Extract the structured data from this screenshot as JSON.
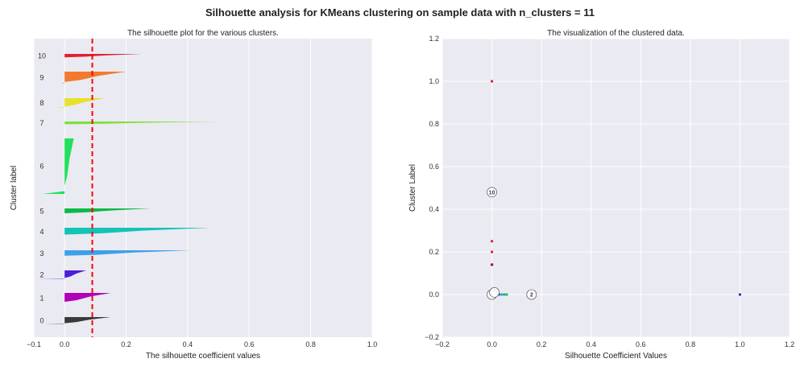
{
  "suptitle": "Silhouette analysis for KMeans clustering on sample data with n_clusters = 11",
  "colors": {
    "bg": "#EAEAF2",
    "grid": "#ffffff",
    "avg_line": "#ff0000"
  },
  "chart_data": [
    {
      "type": "area",
      "title": "The silhouette plot for the various clusters.",
      "xlabel": "The silhouette coefficient values",
      "ylabel": "Cluster label",
      "xlim": [
        -0.1,
        1.0
      ],
      "xticks": [
        -0.1,
        0.0,
        0.2,
        0.4,
        0.6,
        0.8,
        1.0
      ],
      "xtick_labels": [
        "−0.1",
        "0.0",
        "0.2",
        "0.4",
        "0.6",
        "0.8",
        "1.0"
      ],
      "grid": true,
      "average_silhouette": 0.09,
      "clusters": [
        {
          "label": "0",
          "max": 0.15,
          "min": -0.07,
          "color": "#3a3a3a"
        },
        {
          "label": "1",
          "max": 0.15,
          "min": 0.0,
          "color": "#b000b8"
        },
        {
          "label": "2",
          "max": 0.07,
          "min": -0.09,
          "color": "#4a1fd6"
        },
        {
          "label": "3",
          "max": 0.41,
          "min": 0.0,
          "color": "#3ea0e8"
        },
        {
          "label": "4",
          "max": 0.47,
          "min": 0.0,
          "color": "#12c4b6"
        },
        {
          "label": "5",
          "max": 0.28,
          "min": 0.0,
          "color": "#0db847"
        },
        {
          "label": "6",
          "max": 0.03,
          "min": -0.07,
          "color": "#22e05a"
        },
        {
          "label": "7",
          "max": 0.5,
          "min": -0.02,
          "color": "#7fe03a"
        },
        {
          "label": "8",
          "max": 0.13,
          "min": -0.04,
          "color": "#e8e02a"
        },
        {
          "label": "9",
          "max": 0.2,
          "min": -0.01,
          "color": "#f07a2e"
        },
        {
          "label": "10",
          "max": 0.25,
          "min": 0.0,
          "color": "#e02030"
        }
      ]
    },
    {
      "type": "scatter",
      "title": "The visualization of the clustered data.",
      "xlabel": "Silhouette Coefficient Values",
      "ylabel": "Cluster Label",
      "xlim": [
        -0.2,
        1.2
      ],
      "ylim": [
        -0.2,
        1.2
      ],
      "xticks": [
        -0.2,
        0.0,
        0.2,
        0.4,
        0.6,
        0.8,
        1.0,
        1.2
      ],
      "xtick_labels": [
        "−0.2",
        "0.0",
        "0.2",
        "0.4",
        "0.6",
        "0.8",
        "1.0",
        "1.2"
      ],
      "yticks": [
        -0.2,
        0.0,
        0.2,
        0.4,
        0.6,
        0.8,
        1.0,
        1.2
      ],
      "ytick_labels": [
        "−0.2",
        "0.0",
        "0.2",
        "0.4",
        "0.6",
        "0.8",
        "1.0",
        "1.2"
      ],
      "grid": true,
      "points": [
        {
          "x": 0.0,
          "y": 1.0,
          "color": "#e0203a"
        },
        {
          "x": 0.0,
          "y": 0.25,
          "color": "#e0203a"
        },
        {
          "x": 0.0,
          "y": 0.2,
          "color": "#e0203a"
        },
        {
          "x": 0.0,
          "y": 0.14,
          "color": "#b00030"
        },
        {
          "x": 0.0,
          "y": 0.14,
          "color": "#b00030"
        },
        {
          "x": 0.0,
          "y": 0.0,
          "color": "#1a1a8a"
        },
        {
          "x": 0.0,
          "y": 0.01,
          "color": "#1a1a8a"
        },
        {
          "x": 0.01,
          "y": 0.0,
          "color": "#4040c0"
        },
        {
          "x": 0.01,
          "y": 0.02,
          "color": "#1a1a8a"
        },
        {
          "x": 0.02,
          "y": 0.0,
          "color": "#3a50d0"
        },
        {
          "x": 0.03,
          "y": 0.0,
          "color": "#3a70e0"
        },
        {
          "x": 0.04,
          "y": 0.0,
          "color": "#3aa0c0"
        },
        {
          "x": 0.05,
          "y": 0.0,
          "color": "#20b080"
        },
        {
          "x": 0.06,
          "y": 0.0,
          "color": "#20c060"
        },
        {
          "x": 1.0,
          "y": 0.0,
          "color": "#2030c0"
        }
      ],
      "centers": [
        {
          "label": "10",
          "x": 0.0,
          "y": 0.48
        },
        {
          "label": "2",
          "x": 0.16,
          "y": 0.0
        },
        {
          "label": "",
          "x": 0.0,
          "y": 0.0
        },
        {
          "label": "",
          "x": 0.01,
          "y": 0.01
        }
      ]
    }
  ]
}
